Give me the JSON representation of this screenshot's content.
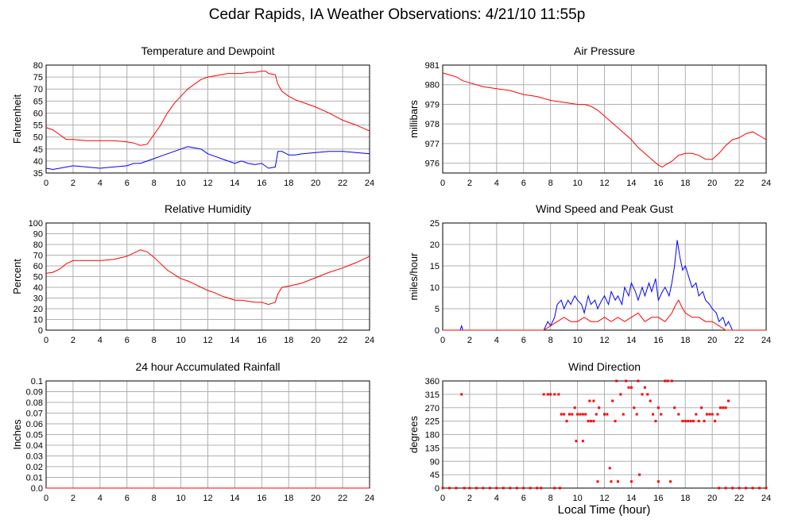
{
  "page_title": "Cedar Rapids, IA Weather Observations: 4/21/10 11:55p",
  "xlabel": "Local Time (hour)",
  "colors": {
    "red": "#ff0000",
    "blue": "#0000ff",
    "grid": "#b0b0b0"
  },
  "chart_data": [
    {
      "id": "temp",
      "type": "line",
      "title": "Temperature and Dewpoint",
      "ylabel": "Fahrenheit",
      "xlim": [
        0,
        24
      ],
      "ylim": [
        35,
        80
      ],
      "xticks": [
        0,
        2,
        4,
        6,
        8,
        10,
        12,
        14,
        16,
        18,
        20,
        22,
        24
      ],
      "yticks": [
        35,
        40,
        45,
        50,
        55,
        60,
        65,
        70,
        75,
        80
      ],
      "grid": true,
      "series": [
        {
          "color": "red",
          "x": [
            0,
            0.5,
            1,
            1.5,
            2,
            3,
            4,
            5,
            6,
            6.5,
            7,
            7.5,
            8,
            8.5,
            9,
            9.5,
            10,
            10.5,
            11,
            11.5,
            12,
            12.5,
            13,
            13.5,
            14,
            14.5,
            15,
            15.5,
            16,
            16.3,
            16.5,
            17,
            17.2,
            17.5,
            18,
            18.5,
            19,
            20,
            21,
            22,
            23,
            24
          ],
          "y": [
            54,
            53,
            51,
            49,
            49,
            48.5,
            48.5,
            48.5,
            48,
            47.5,
            46.5,
            47,
            51,
            55,
            60,
            64,
            67,
            70,
            72,
            74,
            75,
            75.5,
            76,
            76.5,
            76.5,
            76.5,
            77,
            77,
            77.5,
            77.5,
            76.5,
            76,
            72,
            69,
            67,
            65.5,
            64.5,
            62.5,
            60,
            57,
            55,
            52.5
          ]
        },
        {
          "color": "blue",
          "x": [
            0,
            0.5,
            1,
            2,
            3,
            4,
            5,
            6,
            6.5,
            7,
            7.5,
            8,
            8.5,
            9,
            9.5,
            10,
            10.5,
            11,
            11.5,
            12,
            12.5,
            13,
            13.5,
            14,
            14.5,
            15,
            15.5,
            16,
            16.5,
            17,
            17.2,
            17.5,
            18,
            18.5,
            19,
            20,
            21,
            22,
            23,
            24
          ],
          "y": [
            37,
            36.5,
            37,
            38,
            37.5,
            37,
            37.5,
            38,
            39,
            39,
            40,
            41,
            42,
            43,
            44,
            45,
            46,
            45.5,
            45,
            43,
            42,
            41,
            40,
            39,
            40,
            39,
            38.5,
            39,
            37,
            37.5,
            44,
            44,
            42.5,
            42.5,
            43,
            43.5,
            44,
            44,
            43.5,
            43
          ]
        }
      ]
    },
    {
      "id": "pressure",
      "type": "line",
      "title": "Air Pressure",
      "ylabel": "millibars",
      "xlim": [
        0,
        24
      ],
      "ylim": [
        975.5,
        981
      ],
      "xticks": [
        0,
        2,
        4,
        6,
        8,
        10,
        12,
        14,
        16,
        18,
        20,
        22,
        24
      ],
      "yticks": [
        976,
        977,
        978,
        979,
        980,
        981
      ],
      "grid": true,
      "series": [
        {
          "color": "red",
          "x": [
            0,
            0.5,
            1,
            1.5,
            2,
            3,
            4,
            5,
            6,
            7,
            8,
            9,
            10,
            10.5,
            11,
            11.5,
            12,
            12.5,
            13,
            13.5,
            14,
            14.5,
            15,
            15.5,
            16,
            16.3,
            16.5,
            17,
            17.5,
            18,
            18.5,
            19,
            19.5,
            20,
            20.5,
            21,
            21.5,
            22,
            22.5,
            23,
            23.5,
            24
          ],
          "y": [
            980.6,
            980.5,
            980.4,
            980.2,
            980.1,
            979.9,
            979.8,
            979.7,
            979.5,
            979.4,
            979.2,
            979.1,
            979.0,
            979.0,
            978.9,
            978.7,
            978.4,
            978.1,
            977.8,
            977.5,
            977.2,
            976.8,
            976.5,
            976.2,
            975.9,
            975.8,
            975.9,
            976.1,
            976.4,
            976.5,
            976.5,
            976.4,
            976.2,
            976.2,
            976.5,
            976.9,
            977.2,
            977.3,
            977.5,
            977.6,
            977.4,
            977.2
          ]
        }
      ]
    },
    {
      "id": "humidity",
      "type": "line",
      "title": "Relative Humidity",
      "ylabel": "Percent",
      "xlim": [
        0,
        24
      ],
      "ylim": [
        0,
        100
      ],
      "xticks": [
        0,
        2,
        4,
        6,
        8,
        10,
        12,
        14,
        16,
        18,
        20,
        22,
        24
      ],
      "yticks": [
        0,
        10,
        20,
        30,
        40,
        50,
        60,
        70,
        80,
        90,
        100
      ],
      "grid": true,
      "series": [
        {
          "color": "red",
          "x": [
            0,
            0.5,
            1,
            1.5,
            2,
            3,
            4,
            5,
            6,
            6.5,
            7,
            7.5,
            8,
            8.5,
            9,
            9.5,
            10,
            10.5,
            11,
            11.5,
            12,
            12.5,
            13,
            13.5,
            14,
            14.5,
            15,
            15.5,
            16,
            16.5,
            17,
            17.2,
            17.5,
            18,
            19,
            20,
            21,
            22,
            23,
            24
          ],
          "y": [
            53,
            54,
            57,
            62,
            65,
            65,
            65,
            66,
            69,
            72,
            75,
            73,
            68,
            62,
            56,
            52,
            48,
            46,
            43,
            40,
            37,
            35,
            32,
            30,
            28,
            28,
            27,
            26,
            26,
            24,
            26,
            34,
            40,
            41,
            44,
            49,
            54,
            58,
            63,
            69
          ]
        }
      ]
    },
    {
      "id": "wind",
      "type": "line",
      "title": "Wind Speed and Peak Gust",
      "ylabel": "miles/hour",
      "xlim": [
        0,
        24
      ],
      "ylim": [
        0,
        25
      ],
      "xticks": [
        0,
        2,
        4,
        6,
        8,
        10,
        12,
        14,
        16,
        18,
        20,
        22,
        24
      ],
      "yticks": [
        0,
        5,
        10,
        15,
        20,
        25
      ],
      "grid": true,
      "series": [
        {
          "color": "blue",
          "x": [
            0,
            1.3,
            1.4,
            1.5,
            7.5,
            7.8,
            8,
            8.3,
            8.5,
            8.8,
            9,
            9.3,
            9.5,
            9.8,
            10,
            10.3,
            10.5,
            10.8,
            11,
            11.3,
            11.5,
            11.8,
            12,
            12.3,
            12.5,
            12.8,
            13,
            13.3,
            13.5,
            13.8,
            14,
            14.3,
            14.5,
            14.8,
            15,
            15.3,
            15.5,
            15.8,
            16,
            16.3,
            16.5,
            16.8,
            17,
            17.2,
            17.4,
            17.6,
            17.8,
            18,
            18.3,
            18.5,
            18.8,
            19,
            19.3,
            19.5,
            19.8,
            20,
            20.3,
            20.5,
            20.8,
            21,
            21.2,
            21.5,
            24
          ],
          "y": [
            0,
            0,
            1,
            0,
            0,
            2,
            1,
            3,
            6,
            7,
            5,
            7,
            6,
            8,
            7,
            6,
            4,
            8,
            6,
            7,
            5,
            7,
            8,
            6,
            9,
            7,
            8,
            6,
            10,
            8,
            11,
            9,
            7,
            10,
            8,
            11,
            9,
            12,
            7,
            9,
            10,
            8,
            11,
            15,
            21,
            17,
            14,
            15,
            12,
            10,
            11,
            8,
            9,
            7,
            6,
            5,
            4,
            2,
            3,
            1,
            2,
            0,
            0
          ]
        },
        {
          "color": "red",
          "x": [
            0,
            7.5,
            8,
            8.5,
            9,
            9.5,
            10,
            10.5,
            11,
            11.5,
            12,
            12.5,
            13,
            13.5,
            14,
            14.5,
            15,
            15.5,
            16,
            16.5,
            17,
            17.3,
            17.5,
            17.8,
            18,
            18.5,
            19,
            19.5,
            20,
            20.5,
            21,
            24
          ],
          "y": [
            0,
            0,
            1,
            2,
            3,
            2,
            2,
            3,
            2,
            2,
            3,
            2,
            3,
            2,
            3,
            4,
            2,
            3,
            3,
            2,
            4,
            6,
            7,
            5,
            4,
            3,
            3,
            2,
            2,
            1,
            0,
            0
          ]
        }
      ]
    },
    {
      "id": "rain",
      "type": "line",
      "title": "24 hour Accumulated Rainfall",
      "ylabel": "Inches",
      "xlim": [
        0,
        24
      ],
      "ylim": [
        0,
        0.1
      ],
      "xticks": [
        0,
        2,
        4,
        6,
        8,
        10,
        12,
        14,
        16,
        18,
        20,
        22,
        24
      ],
      "yticks": [
        "0.0",
        "0.01",
        "0.02",
        "0.03",
        "0.04",
        "0.05",
        "0.06",
        "0.07",
        "0.08",
        "0.09",
        "0.1"
      ],
      "grid": true,
      "series": [
        {
          "color": "red",
          "x": [
            0,
            24
          ],
          "y": [
            0,
            0
          ]
        }
      ]
    },
    {
      "id": "direction",
      "type": "scatter",
      "title": "Wind Direction",
      "ylabel": "degrees",
      "xlim": [
        0,
        24
      ],
      "ylim": [
        0,
        360
      ],
      "xticks": [
        0,
        2,
        4,
        6,
        8,
        10,
        12,
        14,
        16,
        18,
        20,
        22,
        24
      ],
      "yticks": [
        0,
        45,
        90,
        135,
        180,
        225,
        270,
        315,
        360
      ],
      "grid": true,
      "series": [
        {
          "color": "red",
          "points": [
            [
              0,
              0
            ],
            [
              0.5,
              0
            ],
            [
              1,
              0
            ],
            [
              1.4,
              315
            ],
            [
              1.6,
              0
            ],
            [
              2,
              0
            ],
            [
              2.5,
              0
            ],
            [
              3,
              0
            ],
            [
              3.5,
              0
            ],
            [
              4,
              0
            ],
            [
              4.5,
              0
            ],
            [
              5,
              0
            ],
            [
              5.5,
              0
            ],
            [
              6,
              0
            ],
            [
              6.5,
              0
            ],
            [
              7,
              0
            ],
            [
              7.3,
              0
            ],
            [
              7.5,
              315
            ],
            [
              7.8,
              315
            ],
            [
              8,
              315
            ],
            [
              8.3,
              315
            ],
            [
              8.6,
              315
            ],
            [
              8.3,
              0
            ],
            [
              8.7,
              0
            ],
            [
              8.8,
              248
            ],
            [
              9,
              248
            ],
            [
              9.2,
              225
            ],
            [
              9.4,
              248
            ],
            [
              9.6,
              248
            ],
            [
              9.8,
              270
            ],
            [
              10,
              248
            ],
            [
              10.2,
              248
            ],
            [
              10.4,
              248
            ],
            [
              10.6,
              248
            ],
            [
              9.9,
              158
            ],
            [
              10.4,
              158
            ],
            [
              10.8,
              225
            ],
            [
              11,
              225
            ],
            [
              11.2,
              225
            ],
            [
              10.9,
              293
            ],
            [
              11.2,
              293
            ],
            [
              11.4,
              248
            ],
            [
              11.6,
              270
            ],
            [
              11.5,
              22
            ],
            [
              12,
              248
            ],
            [
              12.2,
              248
            ],
            [
              12.4,
              67
            ],
            [
              12.5,
              22
            ],
            [
              12.6,
              293
            ],
            [
              12.8,
              225
            ],
            [
              12.9,
              360
            ],
            [
              13,
              22
            ],
            [
              13.2,
              315
            ],
            [
              13.4,
              248
            ],
            [
              13.6,
              360
            ],
            [
              13.8,
              338
            ],
            [
              14,
              338
            ],
            [
              14,
              22
            ],
            [
              14.2,
              270
            ],
            [
              14.4,
              248
            ],
            [
              14.5,
              360
            ],
            [
              14.6,
              45
            ],
            [
              14.8,
              315
            ],
            [
              15,
              338
            ],
            [
              15.2,
              315
            ],
            [
              15.4,
              293
            ],
            [
              15.6,
              248
            ],
            [
              15.8,
              225
            ],
            [
              16,
              270
            ],
            [
              16,
              22
            ],
            [
              16.2,
              248
            ],
            [
              16.5,
              360
            ],
            [
              16.7,
              360
            ],
            [
              16.9,
              22
            ],
            [
              17,
              360
            ],
            [
              17.2,
              270
            ],
            [
              17.5,
              248
            ],
            [
              17.8,
              225
            ],
            [
              18,
              225
            ],
            [
              18.2,
              225
            ],
            [
              18.4,
              225
            ],
            [
              18.6,
              225
            ],
            [
              18.8,
              248
            ],
            [
              19,
              225
            ],
            [
              19.2,
              270
            ],
            [
              19.4,
              225
            ],
            [
              19.6,
              248
            ],
            [
              19.8,
              248
            ],
            [
              20,
              248
            ],
            [
              20.2,
              225
            ],
            [
              20.4,
              248
            ],
            [
              20.6,
              270
            ],
            [
              20.8,
              270
            ],
            [
              21,
              270
            ],
            [
              21.2,
              293
            ],
            [
              20.5,
              0
            ],
            [
              21,
              0
            ],
            [
              21.5,
              0
            ],
            [
              22,
              0
            ],
            [
              22.5,
              0
            ],
            [
              23,
              0
            ],
            [
              23.5,
              0
            ],
            [
              24,
              0
            ]
          ]
        }
      ]
    }
  ]
}
